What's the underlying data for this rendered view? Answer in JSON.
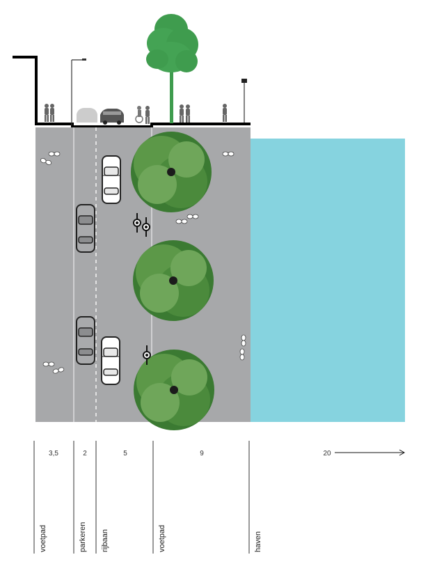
{
  "colors": {
    "road": "#a7a8aa",
    "water": "#86d3df",
    "tree_elevation": "#3f9c4e",
    "tree_canopy_dark": "#3b7a32",
    "tree_canopy_light": "#6fa65a",
    "car_outline": "#222222",
    "profile_line": "#000000"
  },
  "zones": [
    {
      "width": "3,5",
      "label": "voetpad"
    },
    {
      "width": "2",
      "label": "parkeren"
    },
    {
      "width": "5",
      "label": "rijbaan"
    },
    {
      "width": "9",
      "label": "voetpad"
    },
    {
      "width": "20",
      "label": "haven"
    }
  ],
  "icons": [
    "tree-icon",
    "car-icon",
    "cyclist-icon",
    "pedestrian-icon",
    "streetlight-icon",
    "arrow-right-icon"
  ]
}
